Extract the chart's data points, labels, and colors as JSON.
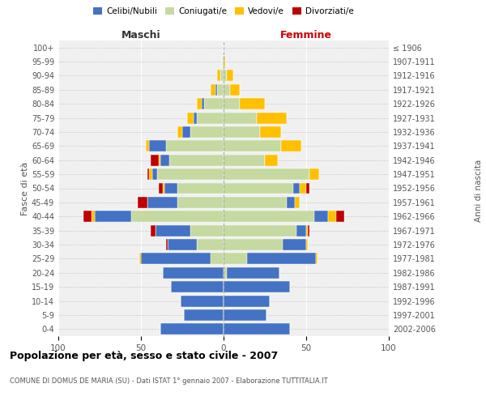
{
  "age_groups": [
    "0-4",
    "5-9",
    "10-14",
    "15-19",
    "20-24",
    "25-29",
    "30-34",
    "35-39",
    "40-44",
    "45-49",
    "50-54",
    "55-59",
    "60-64",
    "65-69",
    "70-74",
    "75-79",
    "80-84",
    "85-89",
    "90-94",
    "95-99",
    "100+"
  ],
  "birth_years": [
    "2002-2006",
    "1997-2001",
    "1992-1996",
    "1987-1991",
    "1982-1986",
    "1977-1981",
    "1972-1976",
    "1967-1971",
    "1962-1966",
    "1957-1961",
    "1952-1956",
    "1947-1951",
    "1942-1946",
    "1937-1941",
    "1932-1936",
    "1927-1931",
    "1922-1926",
    "1917-1921",
    "1912-1916",
    "1907-1911",
    "≤ 1906"
  ],
  "male": {
    "celibe": [
      38,
      24,
      26,
      32,
      37,
      42,
      18,
      21,
      22,
      18,
      8,
      3,
      5,
      10,
      5,
      2,
      1,
      1,
      0,
      0,
      0
    ],
    "coniugato": [
      0,
      0,
      0,
      0,
      0,
      8,
      16,
      20,
      56,
      28,
      28,
      40,
      33,
      35,
      20,
      16,
      12,
      4,
      2,
      1,
      0
    ],
    "vedovo": [
      0,
      0,
      0,
      0,
      0,
      1,
      0,
      0,
      2,
      0,
      1,
      2,
      1,
      2,
      3,
      4,
      3,
      3,
      2,
      0,
      0
    ],
    "divorziato": [
      0,
      0,
      0,
      0,
      0,
      0,
      1,
      3,
      5,
      6,
      2,
      1,
      5,
      0,
      0,
      0,
      0,
      0,
      0,
      0,
      0
    ]
  },
  "female": {
    "nubile": [
      40,
      26,
      28,
      40,
      32,
      42,
      14,
      6,
      8,
      5,
      4,
      0,
      0,
      0,
      0,
      0,
      0,
      0,
      0,
      0,
      0
    ],
    "coniugata": [
      0,
      0,
      0,
      0,
      2,
      14,
      36,
      44,
      55,
      38,
      42,
      52,
      25,
      35,
      22,
      20,
      10,
      4,
      2,
      0,
      0
    ],
    "vedova": [
      0,
      0,
      0,
      0,
      0,
      1,
      1,
      1,
      5,
      3,
      4,
      6,
      8,
      12,
      13,
      18,
      15,
      6,
      4,
      1,
      0
    ],
    "divorziata": [
      0,
      0,
      0,
      0,
      0,
      0,
      0,
      1,
      5,
      0,
      2,
      0,
      0,
      0,
      0,
      0,
      0,
      0,
      0,
      0,
      0
    ]
  },
  "colors": {
    "celibe": "#4472c4",
    "coniugato": "#c5d9a0",
    "vedovo": "#ffc000",
    "divorziato": "#c00000"
  },
  "xlim": 100,
  "title": "Popolazione per età, sesso e stato civile - 2007",
  "subtitle": "COMUNE DI DOMUS DE MARIA (SU) - Dati ISTAT 1° gennaio 2007 - Elaborazione TUTTITALIA.IT",
  "ylabel": "Fasce di età",
  "right_label": "Anni di nascita",
  "bg_color": "#f0f0f0",
  "grid_color": "#cccccc"
}
